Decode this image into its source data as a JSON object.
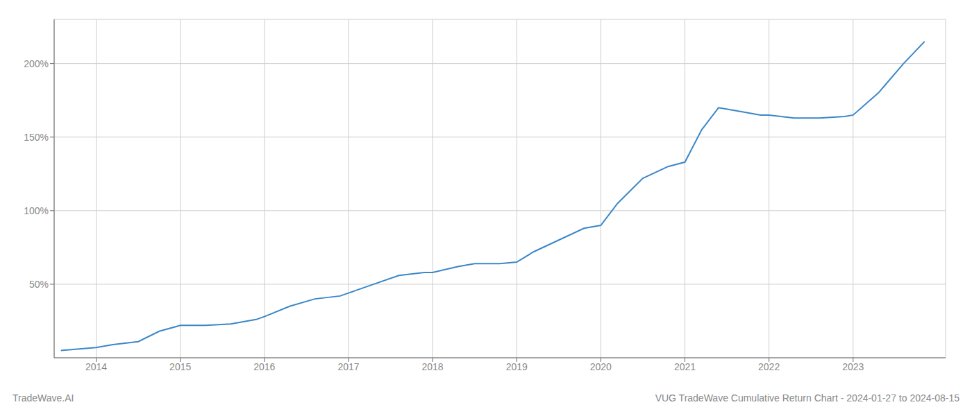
{
  "chart_data": {
    "type": "line",
    "title": "VUG TradeWave Cumulative Return Chart - 2024-01-27 to 2024-08-15",
    "annotations": [
      "TradeWave.AI"
    ],
    "color": "#3a87c8",
    "grid": true,
    "x": [
      2013.58,
      2014.0,
      2014.2,
      2014.5,
      2014.75,
      2015.0,
      2015.3,
      2015.6,
      2015.9,
      2016.0,
      2016.3,
      2016.6,
      2016.9,
      2017.0,
      2017.3,
      2017.6,
      2017.9,
      2018.0,
      2018.3,
      2018.5,
      2018.8,
      2019.0,
      2019.2,
      2019.5,
      2019.8,
      2020.0,
      2020.2,
      2020.5,
      2020.8,
      2021.0,
      2021.2,
      2021.4,
      2021.6,
      2021.9,
      2022.0,
      2022.3,
      2022.6,
      2022.9,
      2023.0,
      2023.3,
      2023.6,
      2023.85
    ],
    "values": [
      5,
      7,
      9,
      11,
      18,
      22,
      22,
      23,
      26,
      28,
      35,
      40,
      42,
      44,
      50,
      56,
      58,
      58,
      62,
      64,
      64,
      65,
      72,
      80,
      88,
      90,
      105,
      122,
      130,
      133,
      155,
      170,
      168,
      165,
      165,
      163,
      163,
      164,
      165,
      180,
      200,
      215
    ],
    "xlim": [
      2013.5,
      2024.1
    ],
    "xticks": [
      2014,
      2015,
      2016,
      2017,
      2018,
      2019,
      2020,
      2021,
      2022,
      2023
    ],
    "ylim": [
      0,
      230
    ],
    "yticks": [
      {
        "value": 50,
        "label": "50%"
      },
      {
        "value": 100,
        "label": "100%"
      },
      {
        "value": 150,
        "label": "150%"
      },
      {
        "value": 200,
        "label": "200%"
      }
    ]
  }
}
